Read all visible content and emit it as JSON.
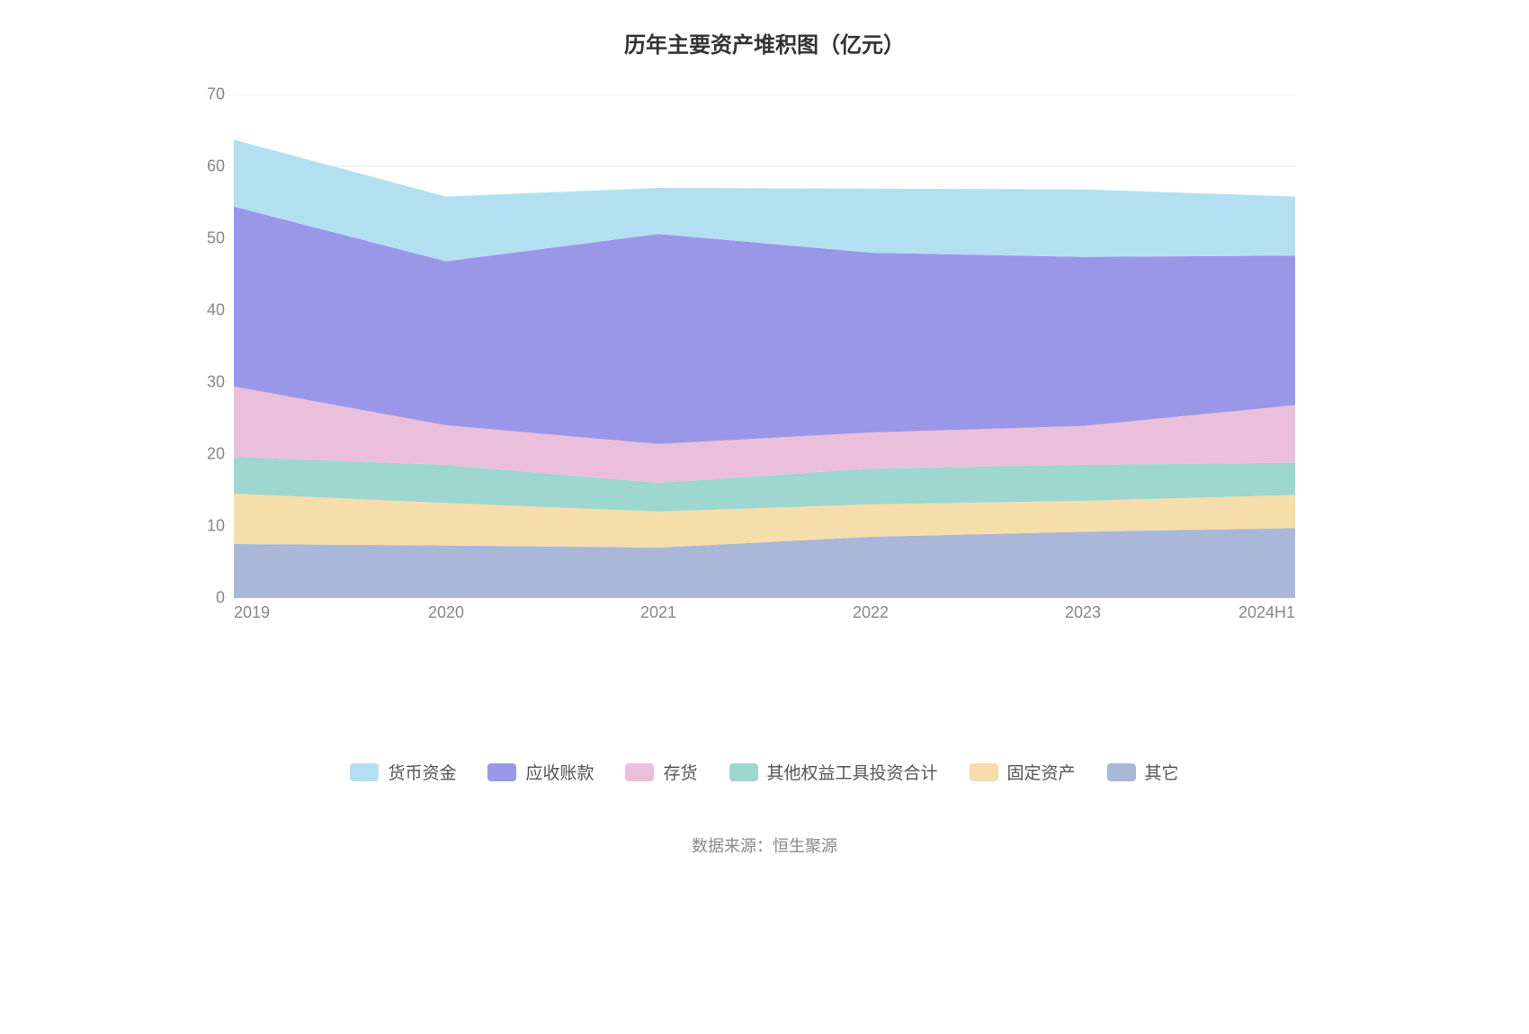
{
  "chart": {
    "type": "stacked-area",
    "title": "历年主要资产堆积图（亿元）",
    "title_fontsize": 24,
    "title_color": "#333333",
    "background_color": "#ffffff",
    "grid_color": "#e0e6ed",
    "axis_color": "#888888",
    "axis_label_color": "#888888",
    "axis_label_fontsize": 18,
    "categories": [
      "2019",
      "2020",
      "2021",
      "2022",
      "2023",
      "2024H1"
    ],
    "ylim": [
      0,
      70
    ],
    "ytick_step": 10,
    "yticks": [
      0,
      10,
      20,
      30,
      40,
      50,
      60,
      70
    ],
    "series": [
      {
        "name": "其它",
        "color": "#a9b7d9",
        "values": [
          7.5,
          7.3,
          7.0,
          8.5,
          9.2,
          9.7
        ]
      },
      {
        "name": "固定资产",
        "color": "#f6deac",
        "values": [
          7.0,
          5.9,
          5.0,
          4.5,
          4.3,
          4.6
        ]
      },
      {
        "name": "其他权益工具投资合计",
        "color": "#9ed7cf",
        "values": [
          5.1,
          5.3,
          4.0,
          5.0,
          5.0,
          4.5
        ]
      },
      {
        "name": "存货",
        "color": "#ebbfdc",
        "values": [
          9.8,
          5.5,
          5.4,
          5.0,
          5.4,
          8.0
        ]
      },
      {
        "name": "应收账款",
        "color": "#9a97e8",
        "values": [
          25.0,
          22.8,
          29.2,
          25.0,
          23.5,
          20.8
        ]
      },
      {
        "name": "货币资金",
        "color": "#b3e0f0",
        "values": [
          9.3,
          9.0,
          6.4,
          8.9,
          9.4,
          8.2
        ]
      }
    ],
    "legend_order": [
      "货币资金",
      "应收账款",
      "存货",
      "其他权益工具投资合计",
      "固定资产",
      "其它"
    ],
    "legend_fontsize": 19,
    "source_note": "数据来源：恒生聚源",
    "source_fontsize": 18
  }
}
